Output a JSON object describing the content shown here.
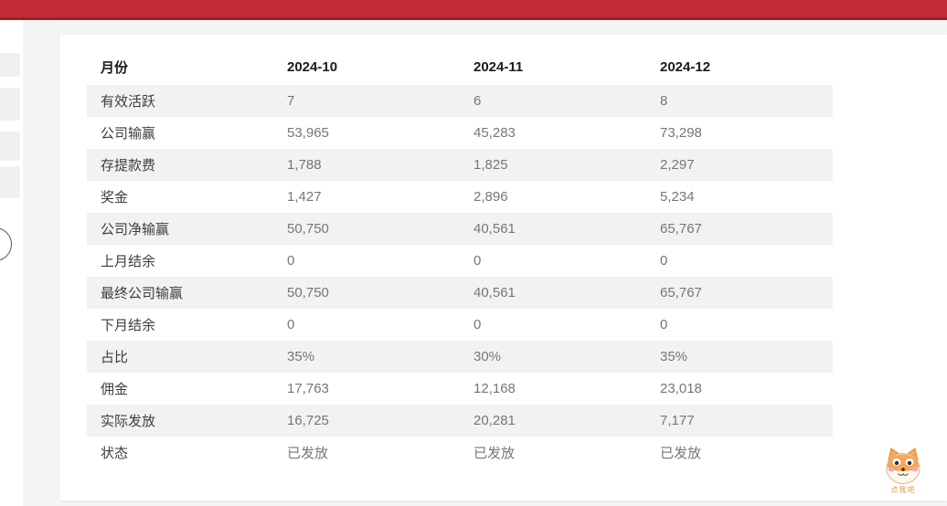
{
  "theme": {
    "topbar_color": "#c22b33",
    "topbar_edge_color": "#9e2127",
    "page_background": "#f5f5f6",
    "card_background": "#ffffff",
    "row_stripe_color": "#f2f2f3",
    "header_text_color": "#1b1b1f",
    "label_text_color": "#3d3d42",
    "value_text_color": "#767679"
  },
  "report_table": {
    "columns": [
      "月份",
      "2024-10",
      "2024-11",
      "2024-12"
    ],
    "rows": [
      {
        "label": "有效活跃",
        "values": [
          "7",
          "6",
          "8"
        ]
      },
      {
        "label": "公司输赢",
        "values": [
          "53,965",
          "45,283",
          "73,298"
        ]
      },
      {
        "label": "存提款费",
        "values": [
          "1,788",
          "1,825",
          "2,297"
        ]
      },
      {
        "label": "奖金",
        "values": [
          "1,427",
          "2,896",
          "5,234"
        ]
      },
      {
        "label": "公司净输赢",
        "values": [
          "50,750",
          "40,561",
          "65,767"
        ]
      },
      {
        "label": "上月结余",
        "values": [
          "0",
          "0",
          "0"
        ]
      },
      {
        "label": "最终公司输赢",
        "values": [
          "50,750",
          "40,561",
          "65,767"
        ]
      },
      {
        "label": "下月结余",
        "values": [
          "0",
          "0",
          "0"
        ]
      },
      {
        "label": "占比",
        "values": [
          "35%",
          "30%",
          "35%"
        ]
      },
      {
        "label": "佣金",
        "values": [
          "17,763",
          "12,168",
          "23,018"
        ]
      },
      {
        "label": "实际发放",
        "values": [
          "16,725",
          "20,281",
          "7,177"
        ]
      },
      {
        "label": "状态",
        "values": [
          "已发放",
          "已发放",
          "已发放"
        ]
      }
    ]
  },
  "mascot": {
    "label": "点我吧"
  }
}
